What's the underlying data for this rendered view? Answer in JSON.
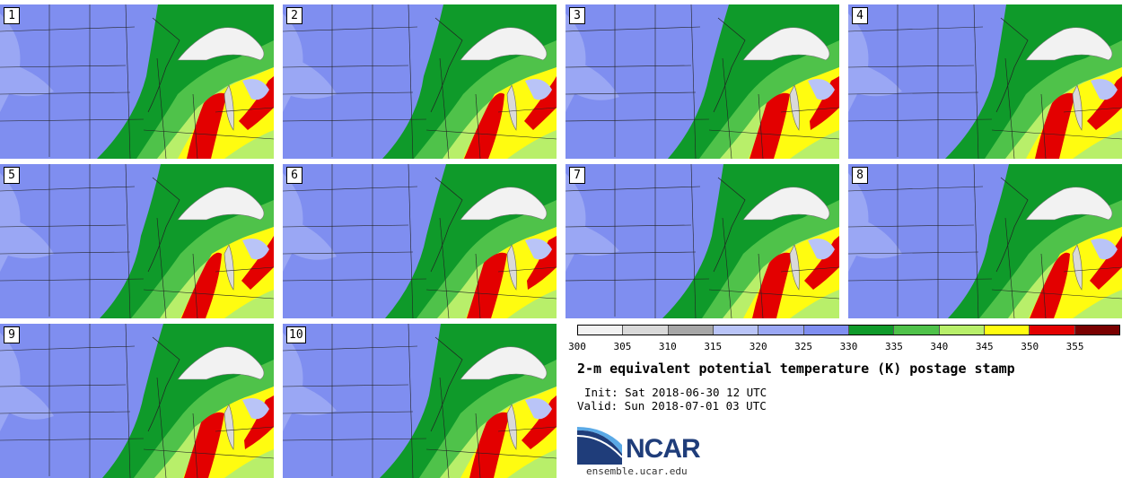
{
  "panels": [
    {
      "label": "1"
    },
    {
      "label": "2"
    },
    {
      "label": "3"
    },
    {
      "label": "4"
    },
    {
      "label": "5"
    },
    {
      "label": "6"
    },
    {
      "label": "7"
    },
    {
      "label": "8"
    },
    {
      "label": "9"
    },
    {
      "label": "10"
    }
  ],
  "colorbar": {
    "bins": [
      {
        "color": "#f2f2f2"
      },
      {
        "color": "#d9d9d9"
      },
      {
        "color": "#a6a6a6"
      },
      {
        "color": "#b9c4f7"
      },
      {
        "color": "#9aa7f4"
      },
      {
        "color": "#7f8ef0"
      },
      {
        "color": "#0f9a2a"
      },
      {
        "color": "#4fc24a"
      },
      {
        "color": "#b8ef6a"
      },
      {
        "color": "#fffc10"
      },
      {
        "color": "#e30000"
      },
      {
        "color": "#7a0000"
      }
    ],
    "ticks": [
      "300",
      "305",
      "310",
      "315",
      "320",
      "325",
      "330",
      "335",
      "340",
      "345",
      "350",
      "355"
    ]
  },
  "title": "2-m equivalent potential temperature (K) postage stamp",
  "init": "Init: Sat 2018-06-30 12 UTC",
  "valid": "Valid: Sun 2018-07-01 03 UTC",
  "logo_text": "NCAR",
  "site": "ensemble.ucar.edu"
}
